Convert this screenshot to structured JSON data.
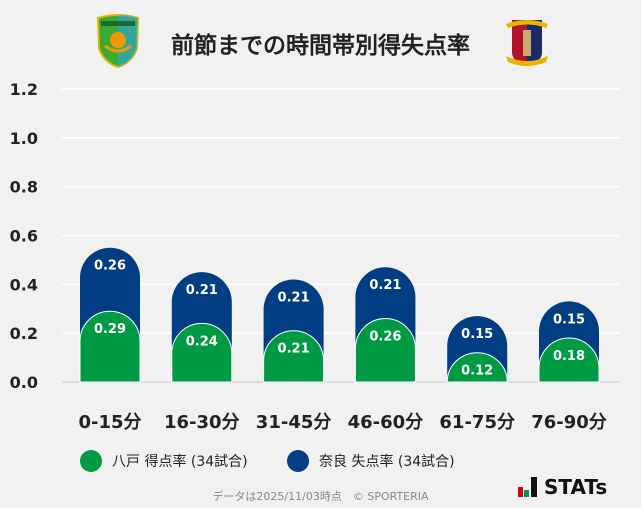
{
  "title": "前節までの時間帯別得失点率",
  "logos": {
    "home": "VANRAURE",
    "away": "NARA CLUB"
  },
  "chart_data": {
    "type": "bar",
    "stacked": true,
    "categories": [
      "0-15分",
      "16-30分",
      "31-45分",
      "46-60分",
      "61-75分",
      "76-90分"
    ],
    "series": [
      {
        "name": "八戸 得点率 (34試合)",
        "color": "#009a44",
        "values": [
          0.29,
          0.24,
          0.21,
          0.26,
          0.12,
          0.18
        ]
      },
      {
        "name": "奈良 失点率 (34試合)",
        "color": "#003d82",
        "values": [
          0.26,
          0.21,
          0.21,
          0.21,
          0.15,
          0.15
        ]
      }
    ],
    "yticks": [
      "0.0",
      "0.2",
      "0.4",
      "0.6",
      "0.8",
      "1.0",
      "1.2"
    ],
    "ylim": [
      0,
      1.2
    ],
    "grid": true,
    "legend": "bottom"
  },
  "footer": "データは2025/11/03時点　© SPORTERIA",
  "brand": "STATs"
}
